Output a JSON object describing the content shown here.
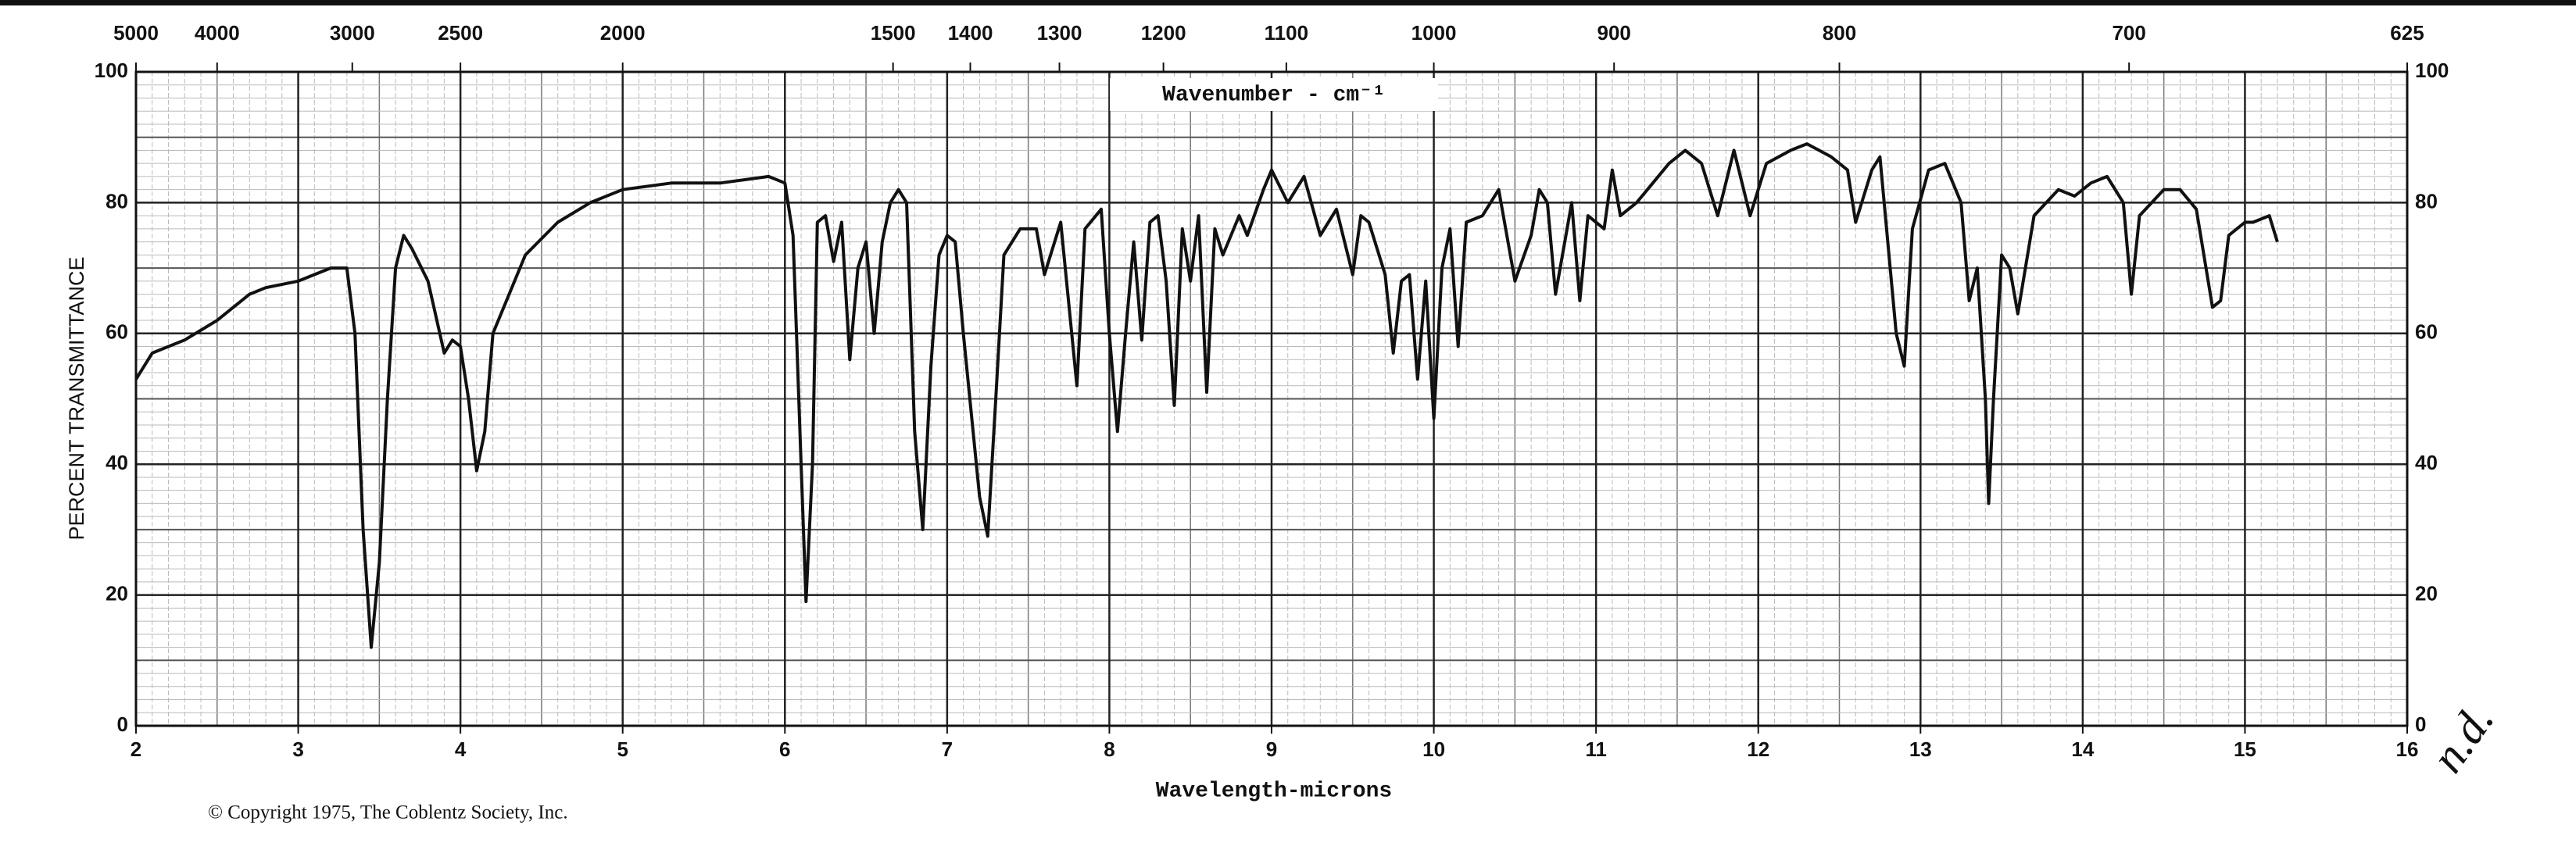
{
  "chart_data": {
    "type": "line",
    "title": "Wavenumber - cm⁻¹",
    "x_label": "Wavelength-microns",
    "y_label": "PERCENT TRANSMITTANCE",
    "copyright": "© Copyright 1975, The Coblentz Society, Inc.",
    "annotation": "n.d.",
    "xlim": [
      2,
      16
    ],
    "xticks": [
      2,
      3,
      4,
      5,
      6,
      7,
      8,
      9,
      10,
      11,
      12,
      13,
      14,
      15,
      16
    ],
    "x2lim": [
      5000,
      625
    ],
    "x2ticks": [
      5000,
      4000,
      3000,
      2500,
      2000,
      1500,
      1400,
      1300,
      1200,
      1100,
      1000,
      900,
      800,
      700,
      625
    ],
    "ylim": [
      0,
      100
    ],
    "yticks": [
      0,
      20,
      40,
      60,
      80,
      100
    ],
    "grid": true,
    "series": [
      {
        "name": "spectrum",
        "color": "#111111",
        "x": [
          2.0,
          2.1,
          2.3,
          2.5,
          2.7,
          2.8,
          3.0,
          3.2,
          3.3,
          3.35,
          3.4,
          3.45,
          3.5,
          3.55,
          3.6,
          3.65,
          3.7,
          3.8,
          3.9,
          3.95,
          4.0,
          4.05,
          4.1,
          4.15,
          4.2,
          4.4,
          4.6,
          4.8,
          5.0,
          5.3,
          5.6,
          5.9,
          6.0,
          6.05,
          6.1,
          6.13,
          6.17,
          6.2,
          6.25,
          6.3,
          6.35,
          6.4,
          6.45,
          6.5,
          6.55,
          6.6,
          6.65,
          6.7,
          6.75,
          6.8,
          6.85,
          6.9,
          6.95,
          7.0,
          7.05,
          7.1,
          7.2,
          7.25,
          7.3,
          7.35,
          7.45,
          7.55,
          7.6,
          7.7,
          7.8,
          7.85,
          7.95,
          8.0,
          8.05,
          8.1,
          8.15,
          8.2,
          8.25,
          8.3,
          8.35,
          8.4,
          8.45,
          8.5,
          8.55,
          8.6,
          8.65,
          8.7,
          8.8,
          8.85,
          8.95,
          9.0,
          9.1,
          9.2,
          9.3,
          9.4,
          9.5,
          9.55,
          9.6,
          9.7,
          9.75,
          9.8,
          9.85,
          9.9,
          9.95,
          10.0,
          10.05,
          10.1,
          10.15,
          10.2,
          10.3,
          10.4,
          10.5,
          10.6,
          10.65,
          10.7,
          10.75,
          10.85,
          10.9,
          10.95,
          11.05,
          11.1,
          11.15,
          11.25,
          11.35,
          11.45,
          11.55,
          11.65,
          11.75,
          11.85,
          11.95,
          12.05,
          12.2,
          12.3,
          12.45,
          12.55,
          12.6,
          12.7,
          12.75,
          12.85,
          12.9,
          12.95,
          13.05,
          13.15,
          13.25,
          13.3,
          13.35,
          13.4,
          13.42,
          13.45,
          13.5,
          13.55,
          13.6,
          13.7,
          13.85,
          13.95,
          14.05,
          14.15,
          14.25,
          14.3,
          14.35,
          14.5,
          14.6,
          14.7,
          14.8,
          14.85,
          14.9,
          15.0,
          15.05,
          15.15,
          15.2
        ],
        "values": [
          53,
          57,
          59,
          62,
          66,
          67,
          68,
          70,
          70,
          60,
          30,
          12,
          25,
          50,
          70,
          75,
          73,
          68,
          57,
          59,
          58,
          50,
          39,
          45,
          60,
          72,
          77,
          80,
          82,
          83,
          83,
          84,
          83,
          75,
          40,
          19,
          40,
          77,
          78,
          71,
          77,
          56,
          70,
          74,
          60,
          74,
          80,
          82,
          80,
          45,
          30,
          55,
          72,
          75,
          74,
          60,
          35,
          29,
          50,
          72,
          76,
          76,
          69,
          77,
          52,
          76,
          79,
          60,
          45,
          60,
          74,
          59,
          77,
          78,
          68,
          49,
          76,
          68,
          78,
          51,
          76,
          72,
          78,
          75,
          82,
          85,
          80,
          84,
          75,
          79,
          69,
          78,
          77,
          69,
          57,
          68,
          69,
          53,
          68,
          47,
          70,
          76,
          58,
          77,
          78,
          82,
          68,
          75,
          82,
          80,
          66,
          80,
          65,
          78,
          76,
          85,
          78,
          80,
          83,
          86,
          88,
          86,
          78,
          88,
          78,
          86,
          88,
          89,
          87,
          85,
          77,
          85,
          87,
          60,
          55,
          76,
          85,
          86,
          80,
          65,
          70,
          50,
          34,
          50,
          72,
          70,
          63,
          78,
          82,
          81,
          83,
          84,
          80,
          66,
          78,
          82,
          82,
          79,
          64,
          65,
          75,
          77,
          77,
          78,
          74
        ]
      }
    ]
  }
}
